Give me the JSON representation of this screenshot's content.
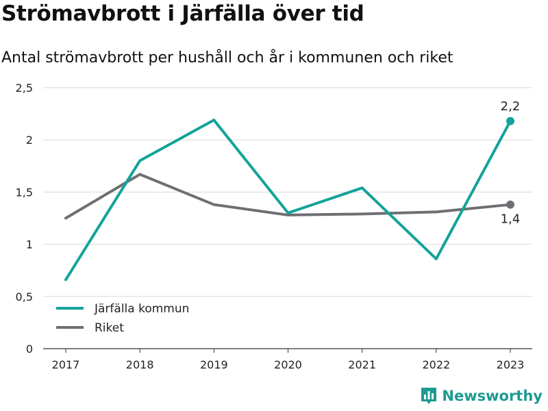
{
  "header": {
    "title": "Strömavbrott i Järfälla över tid",
    "subtitle": "Antal strömavbrott per hushåll och år i kommunen och riket"
  },
  "brand": {
    "name": "Newsworthy",
    "icon": "newsworthy-logo-icon",
    "color": "#1d9a92"
  },
  "chart_data": {
    "type": "line",
    "title": "Strömavbrott i Järfälla över tid",
    "subtitle": "Antal strömavbrott per hushåll och år i kommunen och riket",
    "x": [
      "2017",
      "2018",
      "2019",
      "2020",
      "2021",
      "2022",
      "2023"
    ],
    "series": [
      {
        "name": "Järfälla kommun",
        "color": "#13a39a",
        "values": [
          0.66,
          1.8,
          2.19,
          1.3,
          1.54,
          0.86,
          2.18
        ],
        "end_label": "2,2"
      },
      {
        "name": "Riket",
        "color": "#6f6e73",
        "values": [
          1.25,
          1.67,
          1.38,
          1.28,
          1.29,
          1.31,
          1.38
        ],
        "end_label": "1,4"
      }
    ],
    "ylim": [
      0,
      2.5
    ],
    "yticks": [
      0,
      0.5,
      1,
      1.5,
      2,
      2.5
    ],
    "ytick_labels": [
      "0",
      "0,5",
      "1",
      "1,5",
      "2",
      "2,5"
    ],
    "grid": true,
    "legend": "bottom-left"
  }
}
